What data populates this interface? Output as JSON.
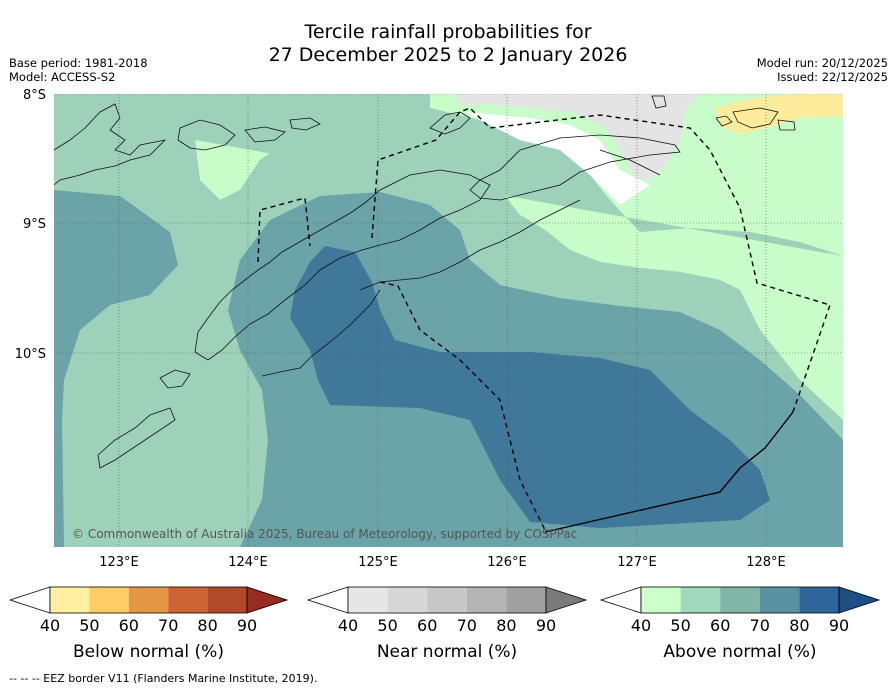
{
  "title": {
    "line1": "Tercile rainfall probabilities for",
    "line2": "27 December 2025 to 2 January 2026"
  },
  "header_left": {
    "base_period": "Base period: 1981-2018",
    "model": "Model: ACCESS-S2"
  },
  "header_right": {
    "model_run": "Model run: 20/12/2025",
    "issued": "Issued: 22/12/2025"
  },
  "map": {
    "lat_labels": [
      "8°S",
      "9°S",
      "10°S"
    ],
    "lon_labels": [
      "123°E",
      "124°E",
      "125°E",
      "126°E",
      "127°E",
      "128°E"
    ],
    "copyright": "© Commonwealth of Australia 2025, Bureau of Meteorology, supported by COSPPac"
  },
  "colorbars": [
    {
      "name": "below",
      "label": "Below normal (%)",
      "ticks": [
        "40",
        "50",
        "60",
        "70",
        "80",
        "90"
      ],
      "colors": [
        "#ffffff",
        "#fff0a0",
        "#ffcc66",
        "#e39646",
        "#cd6433",
        "#b04a28",
        "#962d20"
      ]
    },
    {
      "name": "near",
      "label": "Near normal (%)",
      "ticks": [
        "40",
        "50",
        "60",
        "70",
        "80",
        "90"
      ],
      "colors": [
        "#ffffff",
        "#e6e6e6",
        "#d7d7d7",
        "#c8c8c8",
        "#b4b4b4",
        "#a0a0a0",
        "#7a7a7a"
      ]
    },
    {
      "name": "above",
      "label": "Above normal (%)",
      "ticks": [
        "40",
        "50",
        "60",
        "70",
        "80",
        "90"
      ],
      "colors": [
        "#ffffff",
        "#ccffcc",
        "#a2d9bd",
        "#80b5a8",
        "#5a91a0",
        "#2e6497",
        "#1d4f85"
      ]
    }
  ],
  "footer": "--  --  -- EEZ border V11 (Flanders Marine Institute, 2019)."
}
